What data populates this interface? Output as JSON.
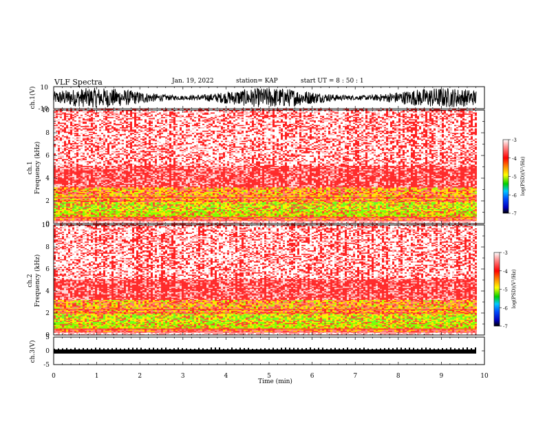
{
  "header": {
    "title": "VLF Spectra",
    "date": "Jan. 19, 2022",
    "station": "station= KAP",
    "start": "start UT =  8 : 50 : 1"
  },
  "chart_data": [
    {
      "id": "ch1-waveform",
      "type": "line",
      "ylabel": "ch.1(V)",
      "ylim": [
        -10,
        10
      ],
      "yticks": [
        "10",
        "-10"
      ],
      "xlim": [
        0,
        10
      ]
    },
    {
      "id": "ch1-spectrogram",
      "type": "heatmap",
      "ylabel_top": "ch.1",
      "ylabel": "Frequency (kHz)",
      "ylim": [
        0,
        10
      ],
      "yticks": [
        0,
        2,
        4,
        6,
        8,
        10
      ],
      "xlim": [
        0,
        10
      ],
      "colorbar": {
        "label": "log(PSD)(V²/Hz)",
        "range": [
          -7,
          -3
        ],
        "ticks": [
          -7,
          -6,
          -5,
          -4,
          -3
        ]
      }
    },
    {
      "id": "ch2-spectrogram",
      "type": "heatmap",
      "ylabel_top": "ch.2",
      "ylabel": "Frequency (kHz)",
      "ylim": [
        0,
        10
      ],
      "yticks": [
        0,
        2,
        4,
        6,
        8,
        10
      ],
      "xlim": [
        0,
        10
      ],
      "colorbar": {
        "label": "log(PSD)(V²/Hz)",
        "range": [
          -7,
          -3
        ],
        "ticks": [
          -7,
          -6,
          -5,
          -4,
          -3
        ]
      }
    },
    {
      "id": "ch3-waveform",
      "type": "line",
      "ylabel": "ch.3(V)",
      "ylim": [
        -5,
        5
      ],
      "yticks": [
        5,
        0,
        -5
      ],
      "xlim": [
        0,
        10
      ],
      "xlabel": "Time (min)",
      "xticks": [
        0,
        1,
        2,
        3,
        4,
        5,
        6,
        7,
        8,
        9,
        10
      ]
    }
  ]
}
